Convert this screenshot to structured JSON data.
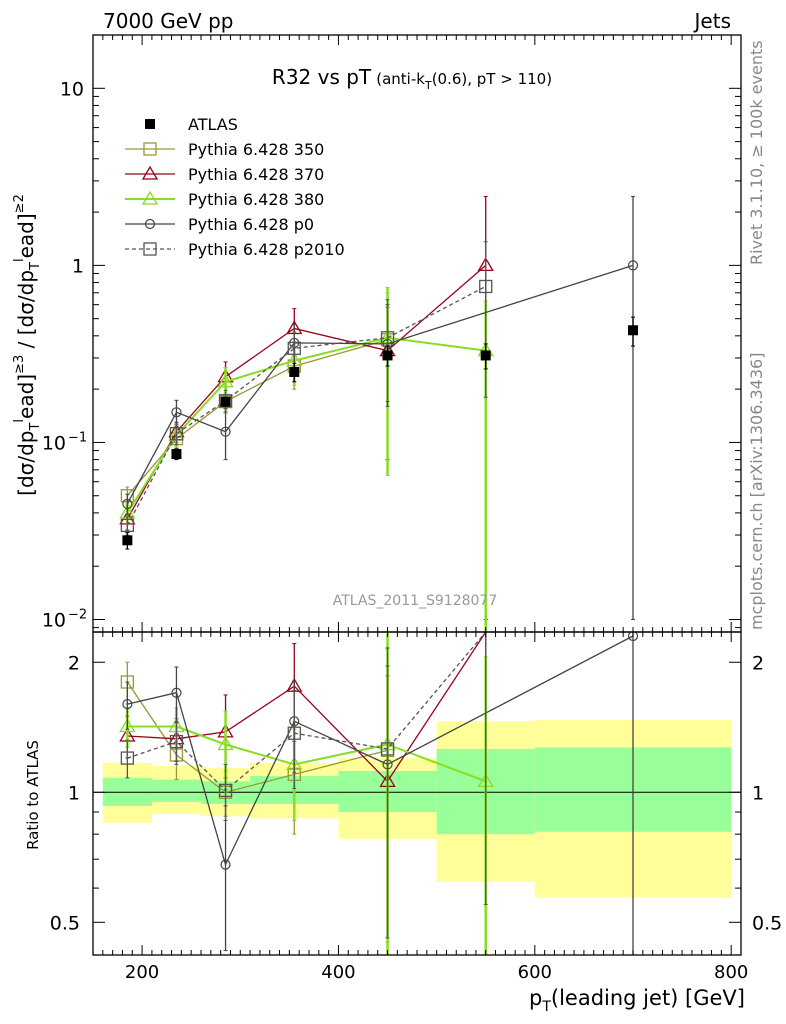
{
  "header": {
    "left": "7000 GeV pp",
    "right": "Jets"
  },
  "side_labels": {
    "rivet": "Rivet 3.1.10, ≥ 100k events",
    "mcplots": "mcplots.cern.ch [arXiv:1306.3436]"
  },
  "analysis_label": "ATLAS_2011_S9128077",
  "chart_data": [
    {
      "type": "line",
      "panel": "main",
      "title": "R32 vs pT",
      "subtitle": "(anti-k_T(0.6), pT > 110)",
      "ylabel": "[dσ/dp_T^lead]^≥3 / [dσ/dp_T^lead]^≥2",
      "xlabel": "",
      "xlim": [
        150,
        810
      ],
      "ylim": [
        0.0085,
        20
      ],
      "yscale": "log",
      "legend_position": "top-left",
      "x_ticks": [
        200,
        400,
        600,
        800
      ],
      "y_ticks": [
        {
          "v": 0.01,
          "label": "10",
          "exp": "−2"
        },
        {
          "v": 0.1,
          "label": "10",
          "exp": "−1"
        },
        {
          "v": 1,
          "label": "1",
          "exp": ""
        },
        {
          "v": 10,
          "label": "10",
          "exp": ""
        }
      ],
      "bins": [
        [
          160,
          210
        ],
        [
          210,
          260
        ],
        [
          260,
          310
        ],
        [
          310,
          400
        ],
        [
          400,
          500
        ],
        [
          500,
          600
        ],
        [
          600,
          800
        ]
      ],
      "series": [
        {
          "name": "ATLAS",
          "color": "#000000",
          "marker": "filled-square",
          "line": "none",
          "x": [
            185,
            235,
            285,
            355,
            450,
            550,
            700
          ],
          "y": [
            0.028,
            0.086,
            0.17,
            0.25,
            0.31,
            0.31,
            0.43
          ],
          "err_up": [
            0.003,
            0.006,
            0.01,
            0.03,
            0.04,
            0.05,
            0.08
          ],
          "err_dn": [
            0.003,
            0.006,
            0.01,
            0.03,
            0.04,
            0.05,
            0.08
          ]
        },
        {
          "name": "Pythia 6.428 350",
          "color": "#999933",
          "marker": "open-square",
          "line": "solid",
          "x": [
            185,
            235,
            285,
            355,
            450
          ],
          "y": [
            0.05,
            0.105,
            0.17,
            0.27,
            0.38
          ],
          "err_up": [
            0.006,
            0.012,
            0.02,
            0.07,
            0.32
          ],
          "err_dn": [
            0.006,
            0.012,
            0.02,
            0.07,
            0.3
          ]
        },
        {
          "name": "Pythia 6.428 370",
          "color": "#99001a",
          "marker": "open-triangle",
          "line": "solid",
          "x": [
            185,
            235,
            285,
            355,
            450,
            550
          ],
          "y": [
            0.037,
            0.115,
            0.235,
            0.44,
            0.33,
            1.0
          ],
          "err_up": [
            0.005,
            0.015,
            0.05,
            0.13,
            0.25,
            1.45
          ],
          "err_dn": [
            0.005,
            0.015,
            0.05,
            0.13,
            0.25,
            0.99
          ]
        },
        {
          "name": "Pythia 6.428 380",
          "color": "#88dd22",
          "marker": "open-triangle",
          "line": "solid",
          "x": [
            185,
            235,
            285,
            355,
            450,
            550
          ],
          "y": [
            0.04,
            0.11,
            0.22,
            0.29,
            0.39,
            0.33
          ],
          "err_up": [
            0.005,
            0.015,
            0.045,
            0.08,
            0.36,
            0.3
          ],
          "err_dn": [
            0.005,
            0.015,
            0.045,
            0.08,
            0.325,
            0.33
          ]
        },
        {
          "name": "Pythia 6.428 p0",
          "color": "#444444",
          "marker": "open-circle",
          "line": "solid",
          "x": [
            185,
            235,
            285,
            355,
            450,
            700
          ],
          "y": [
            0.045,
            0.148,
            0.115,
            0.365,
            0.36,
            1.0
          ],
          "err_up": [
            0.006,
            0.025,
            0.04,
            0.1,
            0.24,
            1.45
          ],
          "err_dn": [
            0.006,
            0.025,
            0.035,
            0.1,
            0.2,
            0.99
          ]
        },
        {
          "name": "Pythia 6.428 p2010",
          "color": "#555555",
          "marker": "open-square",
          "line": "dashed",
          "x": [
            185,
            235,
            285,
            355,
            450,
            550
          ],
          "y": [
            0.034,
            0.112,
            0.172,
            0.34,
            0.39,
            0.76
          ],
          "err_up": [
            0.004,
            0.015,
            0.025,
            0.08,
            0.25,
            0.6
          ],
          "err_dn": [
            0.004,
            0.015,
            0.025,
            0.08,
            0.22,
            0.58
          ]
        }
      ]
    },
    {
      "type": "line",
      "panel": "ratio",
      "ylabel": "Ratio to ATLAS",
      "xlabel": "p_T(leading jet) [GeV]",
      "xlim": [
        150,
        810
      ],
      "ylim": [
        0.42,
        2.35
      ],
      "yscale": "log",
      "x_ticks": [
        200,
        400,
        600,
        800
      ],
      "y_ticks": [
        0.5,
        1,
        2
      ],
      "reference": 1,
      "bands": {
        "bins": [
          [
            160,
            210
          ],
          [
            210,
            260
          ],
          [
            260,
            310
          ],
          [
            310,
            400
          ],
          [
            400,
            500
          ],
          [
            500,
            600
          ],
          [
            600,
            800
          ]
        ],
        "stat": [
          [
            0.93,
            1.08
          ],
          [
            0.95,
            1.07
          ],
          [
            0.94,
            1.06
          ],
          [
            0.94,
            1.09
          ],
          [
            0.9,
            1.12
          ],
          [
            0.8,
            1.26
          ],
          [
            0.81,
            1.27
          ]
        ],
        "total": [
          [
            0.85,
            1.17
          ],
          [
            0.89,
            1.15
          ],
          [
            0.88,
            1.14
          ],
          [
            0.87,
            1.17
          ],
          [
            0.78,
            1.2
          ],
          [
            0.62,
            1.46
          ],
          [
            0.57,
            1.47
          ]
        ],
        "stat_color": "#99ff99",
        "total_color": "#ffff99"
      },
      "series": [
        {
          "name": "Pythia 6.428 350",
          "color": "#999933",
          "marker": "open-square",
          "line": "solid",
          "x": [
            185,
            235,
            285,
            355,
            450
          ],
          "y": [
            1.8,
            1.22,
            1.0,
            1.1,
            1.25
          ],
          "err_up": [
            0.2,
            0.15,
            0.12,
            0.3,
            0.9
          ],
          "err_dn": [
            0.2,
            0.15,
            0.12,
            0.3,
            0.8
          ]
        },
        {
          "name": "Pythia 6.428 370",
          "color": "#99001a",
          "marker": "open-triangle",
          "line": "solid",
          "x": [
            185,
            235,
            285,
            355,
            450,
            550
          ],
          "y": [
            1.35,
            1.33,
            1.38,
            1.76,
            1.06,
            3.2
          ],
          "err_up": [
            0.15,
            0.15,
            0.3,
            0.45,
            0.8,
            4
          ],
          "err_dn": [
            0.15,
            0.15,
            0.3,
            0.45,
            0.8,
            3
          ]
        },
        {
          "name": "Pythia 6.428 380",
          "color": "#88dd22",
          "marker": "open-triangle",
          "line": "solid",
          "x": [
            185,
            235,
            285,
            355,
            450,
            550
          ],
          "y": [
            1.42,
            1.42,
            1.29,
            1.16,
            1.29,
            1.06
          ],
          "err_up": [
            0.15,
            0.15,
            0.25,
            0.3,
            1.2,
            1.0
          ],
          "err_dn": [
            0.15,
            0.15,
            0.25,
            0.3,
            1.0,
            1.0
          ]
        },
        {
          "name": "Pythia 6.428 p0",
          "color": "#444444",
          "marker": "open-circle",
          "line": "solid",
          "x": [
            185,
            235,
            285,
            355,
            450,
            700
          ],
          "y": [
            1.6,
            1.7,
            0.68,
            1.46,
            1.16,
            2.3
          ],
          "err_up": [
            0.2,
            0.25,
            0.25,
            0.35,
            0.8,
            3
          ],
          "err_dn": [
            0.2,
            0.25,
            0.25,
            0.35,
            0.7,
            2.3
          ]
        },
        {
          "name": "Pythia 6.428 p2010",
          "color": "#555555",
          "marker": "open-square",
          "line": "dashed",
          "x": [
            185,
            235,
            285,
            355,
            450,
            550
          ],
          "y": [
            1.2,
            1.31,
            1.01,
            1.37,
            1.26,
            2.45
          ],
          "err_up": [
            0.12,
            0.15,
            0.15,
            0.35,
            0.9,
            2
          ],
          "err_dn": [
            0.12,
            0.15,
            0.15,
            0.35,
            0.8,
            1.9
          ]
        }
      ]
    }
  ]
}
